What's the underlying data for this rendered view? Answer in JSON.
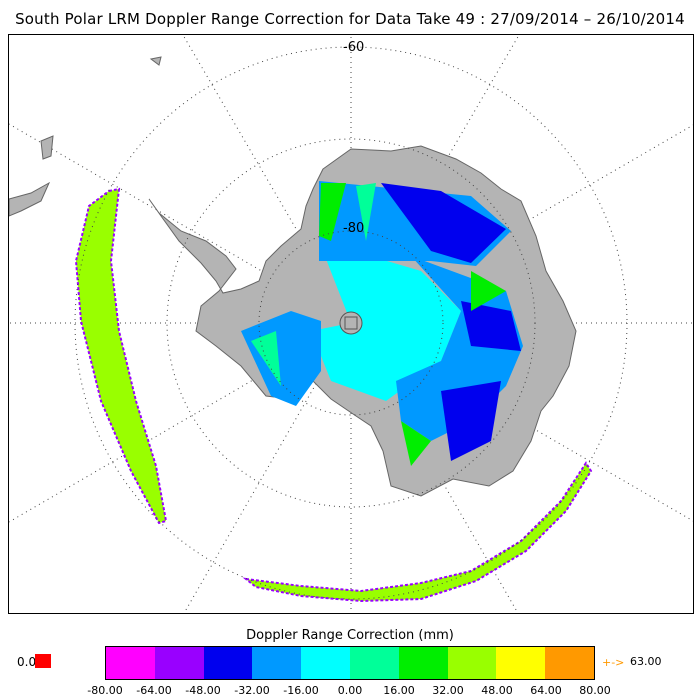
{
  "title": "South Polar LRM Doppler Range Correction for Data Take 49 : 27/09/2014 – 26/10/2014",
  "map": {
    "projection": "south-polar-stereographic",
    "latitude_labels": [
      "-60",
      "-80"
    ],
    "land_color": "#b4b4b4",
    "ocean_color": "#ffffff",
    "graticule_style": "dotted"
  },
  "colorbar": {
    "title": "Doppler Range Correction (mm)",
    "ticks": [
      "-80.00",
      "-64.00",
      "-48.00",
      "-32.00",
      "-16.00",
      "0.00",
      "16.00",
      "32.00",
      "48.00",
      "64.00",
      "80.00"
    ],
    "colors": [
      "#ff00ff",
      "#9900ff",
      "#0000ee",
      "#0099ff",
      "#00ffff",
      "#00ff99",
      "#00ee00",
      "#99ff00",
      "#ffff00",
      "#ff9900"
    ],
    "below_label": "0.0",
    "below_color": "#ff0000",
    "above_arrow": "+->",
    "above_label": "63.00"
  }
}
